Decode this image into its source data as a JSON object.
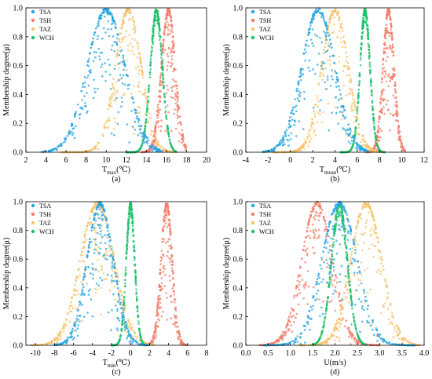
{
  "colors": {
    "TSA": "#27a5e0",
    "TSH": "#f47c6b",
    "TAZ": "#f5c36b",
    "WCH": "#1fbf6a",
    "axis": "#000000"
  },
  "chart_data": [
    {
      "type": "scatter",
      "panel_label": "(a)",
      "xlabel_main": "T",
      "xlabel_sub": "max",
      "xlabel_unit": "(℃)",
      "ylabel": "Membership degree(μ)",
      "xlim": [
        2,
        20
      ],
      "ylim": [
        0,
        1.0
      ],
      "xticks": [
        2,
        4,
        6,
        8,
        10,
        12,
        14,
        16,
        18,
        20
      ],
      "yticks": [
        0.0,
        0.2,
        0.4,
        0.6,
        0.8,
        1.0
      ],
      "legend": [
        "TSA",
        "TSH",
        "TAZ",
        "WCH"
      ],
      "legend_position": "top-left",
      "series": [
        {
          "name": "TSA",
          "peak": 10.0,
          "min": 3.5,
          "max": 15.5,
          "sigma": 1.9,
          "color_key": "TSA"
        },
        {
          "name": "TSH",
          "peak": 16.2,
          "min": 13.5,
          "max": 18.0,
          "sigma": 0.7,
          "color_key": "TSH"
        },
        {
          "name": "TAZ",
          "peak": 12.2,
          "min": 5.5,
          "max": 17.0,
          "sigma": 1.3,
          "color_key": "TAZ"
        },
        {
          "name": "WCH",
          "peak": 15.0,
          "min": 12.0,
          "max": 17.0,
          "sigma": 0.6,
          "color_key": "WCH"
        }
      ]
    },
    {
      "type": "scatter",
      "panel_label": "(b)",
      "xlabel_main": "T",
      "xlabel_sub": "mean",
      "xlabel_unit": "(℃)",
      "ylabel": "Membership degree(μ)",
      "xlim": [
        -4,
        12
      ],
      "ylim": [
        0,
        1.0
      ],
      "xticks": [
        -4,
        -2,
        0,
        2,
        4,
        6,
        8,
        10,
        12
      ],
      "yticks": [
        0.0,
        0.2,
        0.4,
        0.6,
        0.8,
        1.0
      ],
      "legend": [
        "TSA",
        "TSH",
        "TAZ",
        "WCH"
      ],
      "legend_position": "top-left",
      "series": [
        {
          "name": "TSA",
          "peak": 2.5,
          "min": -2.5,
          "max": 7.0,
          "sigma": 1.5,
          "color_key": "TSA"
        },
        {
          "name": "TSH",
          "peak": 8.8,
          "min": 6.8,
          "max": 10.3,
          "sigma": 0.5,
          "color_key": "TSH"
        },
        {
          "name": "TAZ",
          "peak": 4.0,
          "min": -1.5,
          "max": 8.5,
          "sigma": 1.2,
          "color_key": "TAZ"
        },
        {
          "name": "WCH",
          "peak": 6.7,
          "min": 4.5,
          "max": 8.5,
          "sigma": 0.45,
          "color_key": "WCH"
        }
      ]
    },
    {
      "type": "scatter",
      "panel_label": "(c)",
      "xlabel_main": "T",
      "xlabel_sub": "min",
      "xlabel_unit": "(℃)",
      "ylabel": "Membership degree(μ)",
      "xlim": [
        -11,
        8
      ],
      "ylim": [
        0,
        1.0
      ],
      "xticks": [
        -10,
        -8,
        -6,
        -4,
        -2,
        0,
        2,
        4,
        6,
        8
      ],
      "yticks": [
        0.0,
        0.2,
        0.4,
        0.6,
        0.8,
        1.0
      ],
      "legend": [
        "TSA",
        "TSH",
        "TAZ",
        "WCH"
      ],
      "legend_position": "top-left",
      "series": [
        {
          "name": "TSA",
          "peak": -3.2,
          "min": -8.0,
          "max": 2.0,
          "sigma": 1.4,
          "color_key": "TSA"
        },
        {
          "name": "TSH",
          "peak": 3.8,
          "min": 1.5,
          "max": 6.0,
          "sigma": 0.6,
          "color_key": "TSH"
        },
        {
          "name": "TAZ",
          "peak": -3.5,
          "min": -10.5,
          "max": 2.5,
          "sigma": 1.8,
          "color_key": "TAZ"
        },
        {
          "name": "WCH",
          "peak": 0.0,
          "min": -2.0,
          "max": 1.5,
          "sigma": 0.45,
          "color_key": "WCH"
        }
      ]
    },
    {
      "type": "scatter",
      "panel_label": "(d)",
      "xlabel_main": "U(m/s)",
      "xlabel_sub": "",
      "xlabel_unit": "",
      "ylabel": "Membership degree(μ)",
      "xlim": [
        0,
        4.0
      ],
      "ylim": [
        0,
        1.0
      ],
      "xticks": [
        0.0,
        0.5,
        1.0,
        1.5,
        2.0,
        2.5,
        3.0,
        3.5,
        4.0
      ],
      "yticks": [
        0.0,
        0.2,
        0.4,
        0.6,
        0.8,
        1.0
      ],
      "legend": [
        "TSA",
        "TSH",
        "TAZ",
        "WCH"
      ],
      "legend_position": "top-left",
      "series": [
        {
          "name": "TSA",
          "peak": 2.1,
          "min": 0.4,
          "max": 3.8,
          "sigma": 0.4,
          "color_key": "TSA"
        },
        {
          "name": "TSH",
          "peak": 1.6,
          "min": 0.3,
          "max": 3.0,
          "sigma": 0.35,
          "color_key": "TSH"
        },
        {
          "name": "TAZ",
          "peak": 2.7,
          "min": 1.2,
          "max": 3.9,
          "sigma": 0.35,
          "color_key": "TAZ"
        },
        {
          "name": "WCH",
          "peak": 2.1,
          "min": 1.5,
          "max": 2.7,
          "sigma": 0.18,
          "color_key": "WCH"
        }
      ]
    }
  ]
}
